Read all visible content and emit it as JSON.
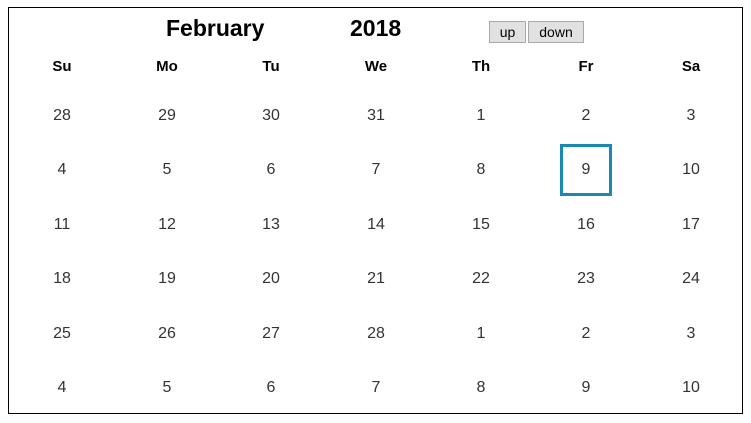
{
  "header": {
    "month": "February",
    "year": "2018",
    "up_label": "up",
    "down_label": "down"
  },
  "weekdays": [
    "Su",
    "Mo",
    "Tu",
    "We",
    "Th",
    "Fr",
    "Sa"
  ],
  "weeks": [
    [
      "28",
      "29",
      "30",
      "31",
      "1",
      "2",
      "3"
    ],
    [
      "4",
      "5",
      "6",
      "7",
      "8",
      "9",
      "10"
    ],
    [
      "11",
      "12",
      "13",
      "14",
      "15",
      "16",
      "17"
    ],
    [
      "18",
      "19",
      "20",
      "21",
      "22",
      "23",
      "24"
    ],
    [
      "25",
      "26",
      "27",
      "28",
      "1",
      "2",
      "3"
    ],
    [
      "4",
      "5",
      "6",
      "7",
      "8",
      "9",
      "10"
    ]
  ],
  "selected": {
    "week": 1,
    "day": 5
  },
  "colors": {
    "selected_border": "#1a88b0",
    "day_text": "#333333",
    "button_bg": "#e1e1e1"
  }
}
